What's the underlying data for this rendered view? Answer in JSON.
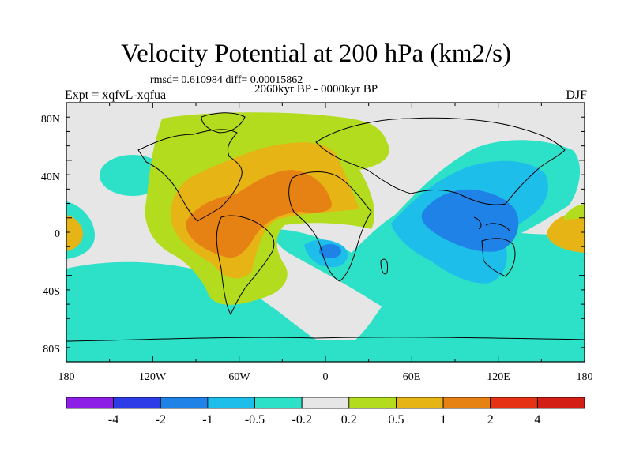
{
  "title": "Velocity Potential at 200 hPa (km2/s)",
  "stats": "rmsd= 0.610984 diff= 0.00015862",
  "period": "2060kyr BP - 0000kyr BP",
  "experiment": "Expt = xqfvL-xqfua",
  "season": "DJF",
  "map": {
    "lat_labels": [
      "80N",
      "40N",
      "0",
      "40S",
      "80S"
    ],
    "lon_labels": [
      "180",
      "120W",
      "60W",
      "0",
      "60E",
      "120E",
      "180"
    ]
  },
  "colorbar": {
    "labels": [
      "-4",
      "-2",
      "-1",
      "-0.5",
      "-0.2",
      "0.2",
      "0.5",
      "1",
      "2",
      "4"
    ],
    "colors": [
      "#8c1ee6",
      "#2d3ce6",
      "#1e82e6",
      "#1ebeeb",
      "#2de1c8",
      "#e6e6e6",
      "#b4dc1e",
      "#e6b414",
      "#e68214",
      "#e63214",
      "#d21e14"
    ]
  },
  "palette": {
    "light_gray": "#e6e6e6",
    "teal": "#2de1c8",
    "cyan": "#1ebeeb",
    "blue": "#1e82e6",
    "yellow_green": "#b4dc1e",
    "gold": "#e6b414",
    "orange": "#e68214"
  }
}
